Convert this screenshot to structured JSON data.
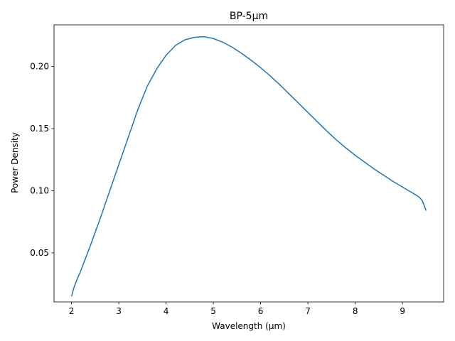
{
  "chart_data": {
    "type": "line",
    "title": "BP-5µm",
    "xlabel": "Wavelength (µm)",
    "ylabel": "Power Density",
    "xlim": [
      1.63,
      9.87
    ],
    "ylim": [
      0.0105,
      0.2335
    ],
    "xticks": [
      2,
      3,
      4,
      5,
      6,
      7,
      8,
      9
    ],
    "xtick_labels": [
      "2",
      "3",
      "4",
      "5",
      "6",
      "7",
      "8",
      "9"
    ],
    "yticks": [
      0.05,
      0.1,
      0.15,
      0.2
    ],
    "ytick_labels": [
      "0.05",
      "0.10",
      "0.15",
      "0.20"
    ],
    "grid": false,
    "series": [
      {
        "color": "#1f77b4",
        "x": [
          2.0,
          2.05,
          2.1,
          2.2,
          2.4,
          2.6,
          2.8,
          3.0,
          3.2,
          3.4,
          3.6,
          3.8,
          4.0,
          4.2,
          4.4,
          4.6,
          4.8,
          5.0,
          5.2,
          5.4,
          5.6,
          5.8,
          6.0,
          6.2,
          6.4,
          6.6,
          6.8,
          7.0,
          7.2,
          7.4,
          7.6,
          7.8,
          8.0,
          8.2,
          8.4,
          8.6,
          8.8,
          9.0,
          9.2,
          9.35,
          9.42,
          9.5
        ],
        "y": [
          0.015,
          0.022,
          0.027,
          0.036,
          0.056,
          0.077,
          0.099,
          0.121,
          0.143,
          0.165,
          0.184,
          0.198,
          0.209,
          0.217,
          0.2215,
          0.2235,
          0.224,
          0.2225,
          0.2195,
          0.2155,
          0.2105,
          0.205,
          0.199,
          0.1925,
          0.1855,
          0.178,
          0.1705,
          0.163,
          0.1555,
          0.148,
          0.141,
          0.1345,
          0.1285,
          0.123,
          0.1175,
          0.1125,
          0.1075,
          0.103,
          0.0985,
          0.095,
          0.092,
          0.084
        ]
      }
    ]
  }
}
